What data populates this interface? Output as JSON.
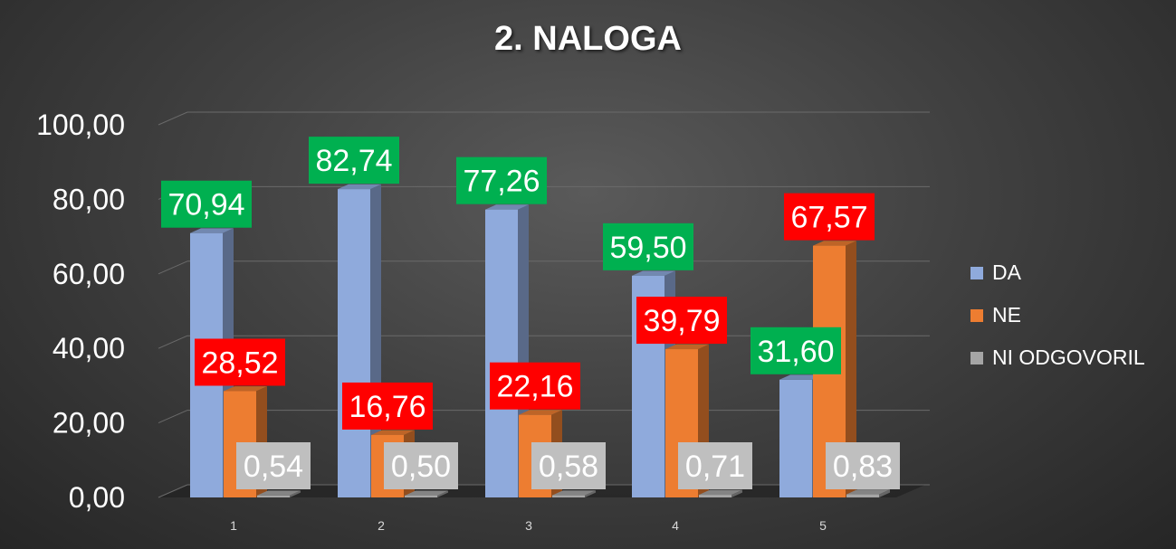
{
  "chart_data": {
    "type": "bar",
    "title": "2. NALOGA",
    "xlabel": "",
    "ylabel": "",
    "categories": [
      "1",
      "2",
      "3",
      "4",
      "5"
    ],
    "ylim": [
      0,
      100
    ],
    "yticks": [
      "0,00",
      "20,00",
      "40,00",
      "60,00",
      "80,00",
      "100,00"
    ],
    "grid": true,
    "legend": "right",
    "series": [
      {
        "name": "DA",
        "color": "#8faadc",
        "label_bg": "#00b050",
        "values": [
          70.94,
          82.74,
          77.26,
          59.5,
          31.6
        ],
        "labels": [
          "70,94",
          "82,74",
          "77,26",
          "59,50",
          "31,60"
        ]
      },
      {
        "name": "NE",
        "color": "#ed7d31",
        "label_bg": "#ff0000",
        "values": [
          28.52,
          16.76,
          22.16,
          39.79,
          67.57
        ],
        "labels": [
          "28,52",
          "16,76",
          "22,16",
          "39,79",
          "67,57"
        ]
      },
      {
        "name": "NI ODGOVORIL",
        "color": "#a5a5a5",
        "label_bg": "#bfbfbf",
        "values": [
          0.54,
          0.5,
          0.58,
          0.71,
          0.83
        ],
        "labels": [
          "0,54",
          "0,50",
          "0,58",
          "0,71",
          "0,83"
        ]
      }
    ]
  }
}
